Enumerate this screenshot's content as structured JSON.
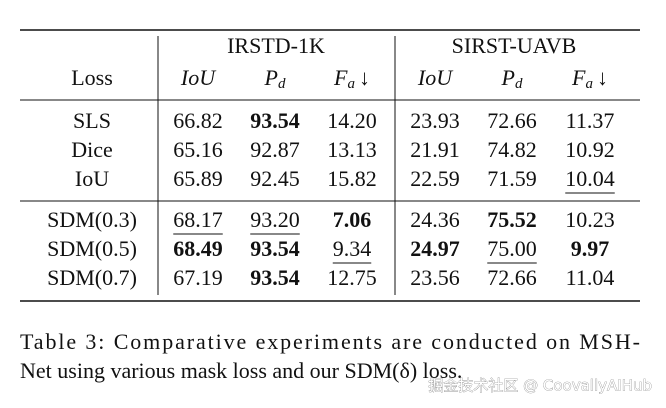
{
  "table": {
    "row_header": "Loss",
    "groups": [
      "IRSTD-1K",
      "SIRST-UAVB"
    ],
    "columns": [
      {
        "base": "IoU"
      },
      {
        "base": "P",
        "sub": "d"
      },
      {
        "base": "F",
        "sub": "a",
        "suffix": "↓"
      },
      {
        "base": "IoU"
      },
      {
        "base": "P",
        "sub": "d"
      },
      {
        "base": "F",
        "sub": "a",
        "suffix": "↓"
      }
    ],
    "sections": [
      [
        {
          "loss": "SLS",
          "values": [
            "66.82",
            "93.54",
            "14.20",
            "23.93",
            "72.66",
            "11.37"
          ],
          "bold": [
            1
          ],
          "underline": []
        },
        {
          "loss": "Dice",
          "values": [
            "65.16",
            "92.87",
            "13.13",
            "21.91",
            "74.82",
            "10.92"
          ],
          "bold": [],
          "underline": []
        },
        {
          "loss": "IoU",
          "values": [
            "65.89",
            "92.45",
            "15.82",
            "22.59",
            "71.59",
            "10.04"
          ],
          "bold": [],
          "underline": [
            5
          ]
        }
      ],
      [
        {
          "loss": "SDM(0.3)",
          "values": [
            "68.17",
            "93.20",
            "7.06",
            "24.36",
            "75.52",
            "10.23"
          ],
          "bold": [
            2,
            4
          ],
          "underline": [
            0,
            1
          ]
        },
        {
          "loss": "SDM(0.5)",
          "values": [
            "68.49",
            "93.54",
            "9.34",
            "24.97",
            "75.00",
            "9.97"
          ],
          "bold": [
            0,
            1,
            3,
            5
          ],
          "underline": [
            2,
            4
          ]
        },
        {
          "loss": "SDM(0.7)",
          "values": [
            "67.19",
            "93.54",
            "12.75",
            "23.56",
            "72.66",
            "11.04"
          ],
          "bold": [
            1
          ],
          "underline": []
        }
      ]
    ]
  },
  "caption": {
    "lines": [
      "Table 3: Comparative experiments are conducted on MSH-",
      "Net using various mask loss and our SDM(δ) loss."
    ]
  },
  "watermark": "掘金技术社区 @ CoovallyAIHub"
}
